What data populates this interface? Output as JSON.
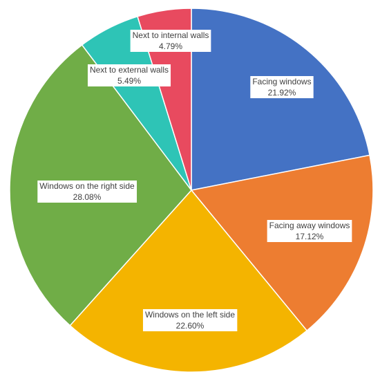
{
  "chart_data": {
    "type": "pie",
    "title": "",
    "start_angle_deg": 0,
    "direction": "clockwise",
    "slices": [
      {
        "label": "Facing windows",
        "value": 21.92,
        "value_label": "21.92%",
        "color": "#4472c4"
      },
      {
        "label": "Facing away windows",
        "value": 17.12,
        "value_label": "17.12%",
        "color": "#ed7d31"
      },
      {
        "label": "Windows on the left side",
        "value": 22.6,
        "value_label": "22.60%",
        "color": "#f4b400"
      },
      {
        "label": "Windows on the right side",
        "value": 28.08,
        "value_label": "28.08%",
        "color": "#70ad47"
      },
      {
        "label": "Next to external walls",
        "value": 5.49,
        "value_label": "5.49%",
        "color": "#2ec4b6"
      },
      {
        "label": "Next to internal walls",
        "value": 4.79,
        "value_label": "4.79%",
        "color": "#e84a5f"
      }
    ]
  }
}
